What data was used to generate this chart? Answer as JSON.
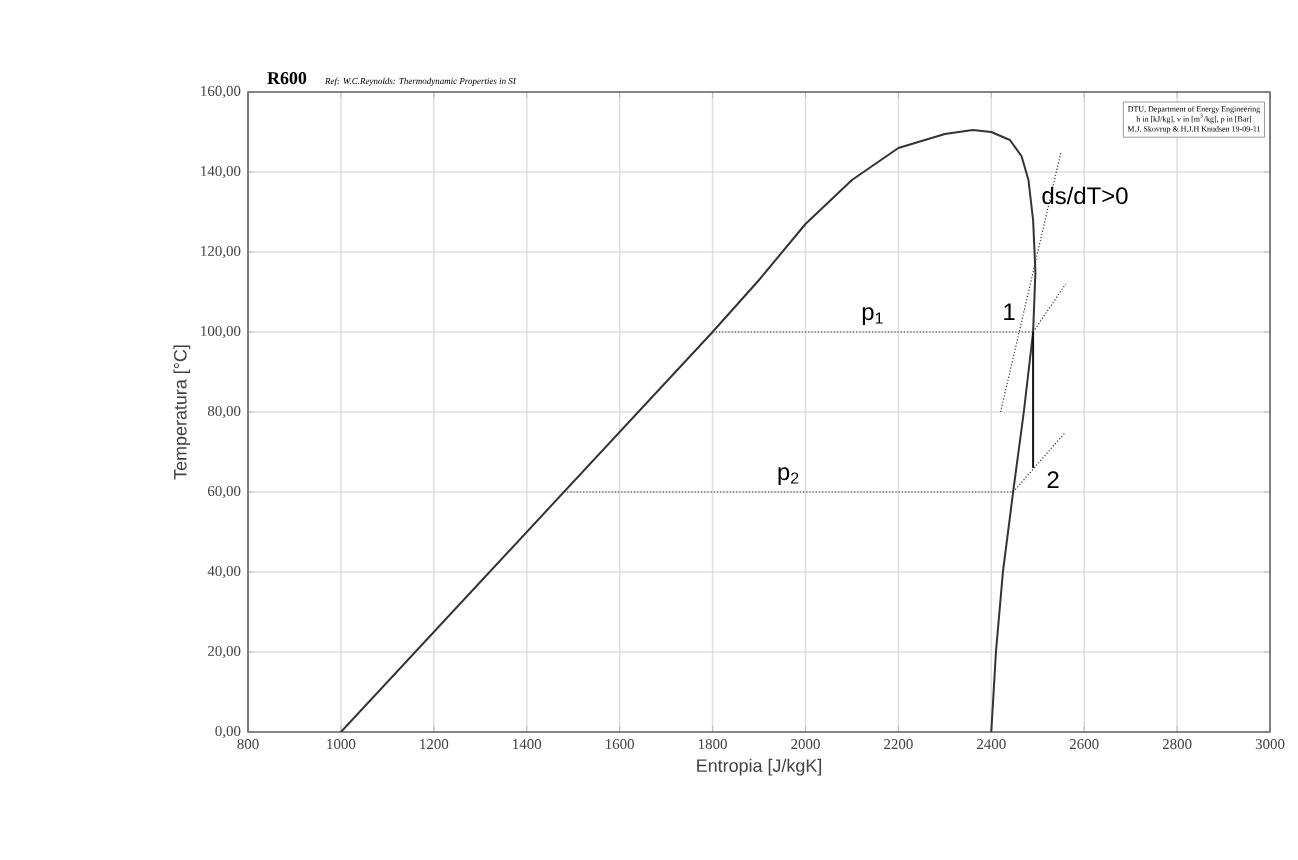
{
  "chart_data": {
    "type": "line",
    "title": "R600",
    "subtitle": "Ref: W.C.Reynolds: Thermodynamic Properties in SI",
    "xlabel": "Entropia [J/kgK]",
    "ylabel": "Temperatura [°C]",
    "xlim": [
      800,
      3000
    ],
    "ylim": [
      0,
      160
    ],
    "xticks": [
      800,
      1000,
      1200,
      1400,
      1600,
      1800,
      2000,
      2200,
      2400,
      2600,
      2800,
      3000
    ],
    "yticks": [
      {
        "value": 0,
        "label": "0,00"
      },
      {
        "value": 20,
        "label": "20,00"
      },
      {
        "value": 40,
        "label": "40,00"
      },
      {
        "value": 60,
        "label": "60,00"
      },
      {
        "value": 80,
        "label": "80,00"
      },
      {
        "value": 100,
        "label": "100,00"
      },
      {
        "value": 120,
        "label": "120,00"
      },
      {
        "value": 140,
        "label": "140,00"
      },
      {
        "value": 160,
        "label": "160,00"
      }
    ],
    "grid": true,
    "marker": "none",
    "series": [
      {
        "color": "#333333",
        "line_style": "solid",
        "x": [
          1000,
          1800,
          1900,
          2000,
          2100,
          2200,
          2300,
          2360,
          2400,
          2440,
          2465,
          2480,
          2490,
          2495,
          2490,
          2470,
          2447,
          2425,
          2410,
          2400
        ],
        "values": [
          0,
          100,
          113,
          127,
          138,
          146,
          149.5,
          150.5,
          150,
          148,
          144,
          138,
          128,
          115,
          100,
          80,
          60,
          40,
          20,
          0
        ]
      },
      {
        "color": "#333333",
        "line_style": "dotted",
        "x": [
          1800,
          2490
        ],
        "values": [
          100,
          100
        ]
      },
      {
        "color": "#333333",
        "line_style": "dotted",
        "x": [
          1480,
          2447
        ],
        "values": [
          60,
          60
        ]
      },
      {
        "color": "#111111",
        "line_style": "solid",
        "x": [
          2490,
          2490
        ],
        "values": [
          100,
          66
        ]
      },
      {
        "color": "#333333",
        "line_style": "dotted",
        "x": [
          2420,
          2550
        ],
        "values": [
          80,
          145
        ]
      },
      {
        "color": "#333333",
        "line_style": "dotted",
        "x": [
          2490,
          2560
        ],
        "values": [
          100,
          112
        ]
      },
      {
        "color": "#333333",
        "line_style": "dotted",
        "x": [
          2447,
          2560
        ],
        "values": [
          60,
          75
        ]
      }
    ],
    "annotations": [
      "p$_{1}$",
      "p$_{2}$",
      "1",
      "2",
      "ds/dT>0",
      "DTU, Department of Energy Engineering",
      "h in [kJ/kg], v in [m$^{3}$/kg], p in [Bar]",
      "M.J. Skovrup & H.J.H Knudsen 19-09-11"
    ]
  }
}
